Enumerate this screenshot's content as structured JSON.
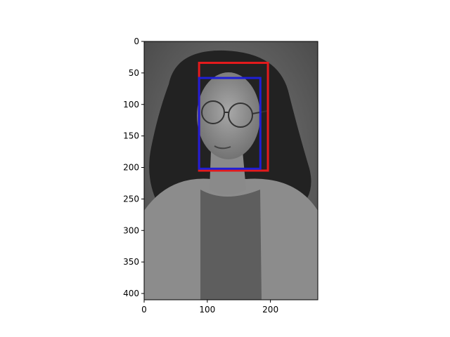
{
  "image": {
    "description_icon": "grayscale-portrait-photo",
    "width": 275,
    "height": 410,
    "xlim": [
      0,
      275
    ],
    "ylim": [
      410,
      0
    ]
  },
  "x_axis": {
    "ticks": [
      {
        "value": 0,
        "label": "0"
      },
      {
        "value": 100,
        "label": "100"
      },
      {
        "value": 200,
        "label": "200"
      }
    ]
  },
  "y_axis": {
    "ticks": [
      {
        "value": 0,
        "label": "0"
      },
      {
        "value": 50,
        "label": "50"
      },
      {
        "value": 100,
        "label": "100"
      },
      {
        "value": 150,
        "label": "150"
      },
      {
        "value": 200,
        "label": "200"
      },
      {
        "value": 250,
        "label": "250"
      },
      {
        "value": 300,
        "label": "300"
      },
      {
        "value": 350,
        "label": "350"
      },
      {
        "value": 400,
        "label": "400"
      }
    ]
  },
  "boxes": [
    {
      "name": "red-box",
      "color": "#e41a1c",
      "x0": 87,
      "y0": 34,
      "x1": 196,
      "y1": 205
    },
    {
      "name": "blue-box",
      "color": "#1f1fd6",
      "x0": 87,
      "y0": 58,
      "x1": 184,
      "y1": 202
    }
  ],
  "colors": {
    "background": "#ffffff",
    "axis": "#000000"
  }
}
